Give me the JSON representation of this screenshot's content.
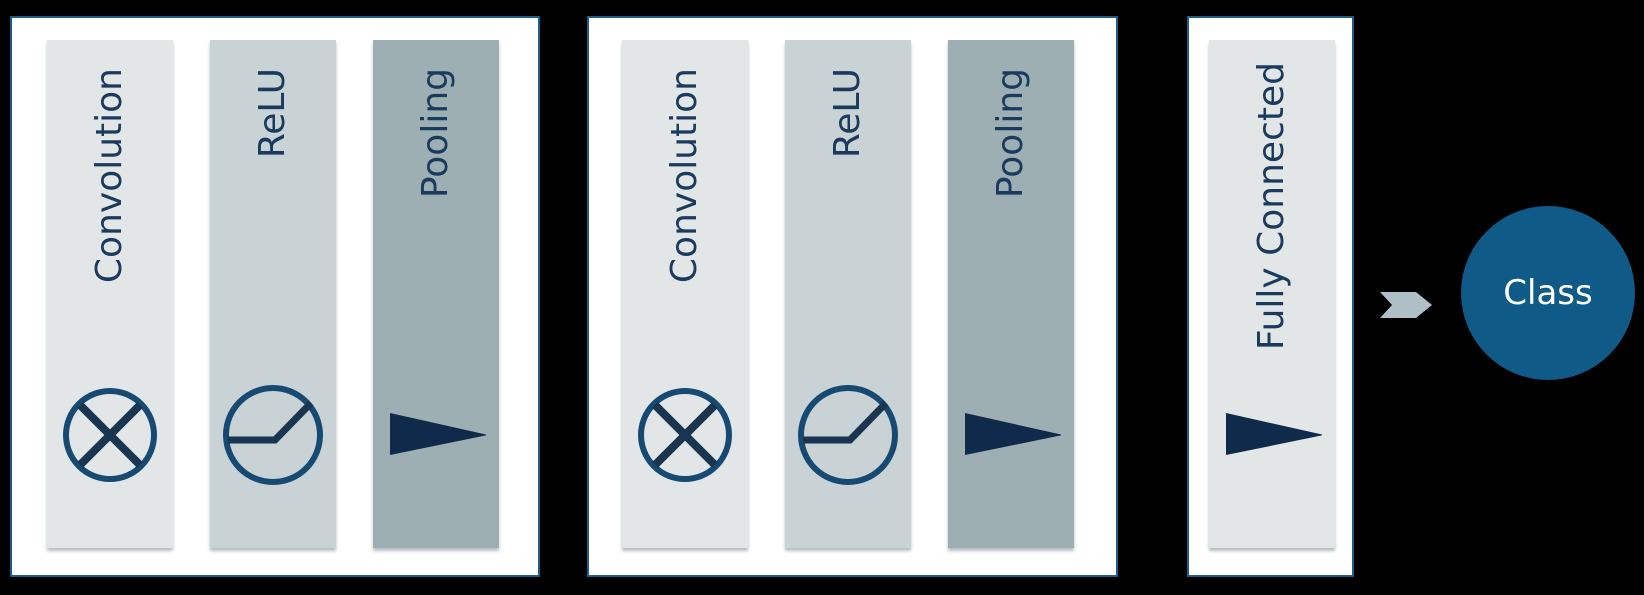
{
  "stages": [
    {
      "conv_label": "Convolution",
      "relu_label": "ReLU",
      "pool_label": "Pooling"
    },
    {
      "conv_label": "Convolution",
      "relu_label": "ReLU",
      "pool_label": "Pooling"
    }
  ],
  "fully_connected": {
    "label": "Fully Connected"
  },
  "output": {
    "label": "Class"
  },
  "icons": {
    "convolution": "circled-x-icon",
    "relu": "relu-curve-icon",
    "pooling": "wedge-triangle-icon",
    "arrow": "chevron-right-arrow-icon"
  },
  "colors": {
    "frame_border": "#1f5c8a",
    "conv_column": "#e3e6e7",
    "relu_column": "#c9d3d5",
    "pool_column": "#9eafb4",
    "text": "#1a3a5e",
    "icon": "#174a72",
    "triangle": "#0f2a4a",
    "class_circle": "#0f5a86"
  }
}
